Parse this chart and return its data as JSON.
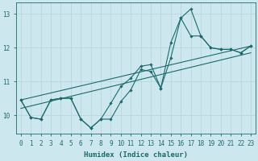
{
  "title": "",
  "xlabel": "Humidex (Indice chaleur)",
  "ylabel": "",
  "xlim": [
    -0.5,
    23.5
  ],
  "ylim": [
    9.45,
    13.35
  ],
  "yticks": [
    10,
    11,
    12,
    13
  ],
  "xticks": [
    0,
    1,
    2,
    3,
    4,
    5,
    6,
    7,
    8,
    9,
    10,
    11,
    12,
    13,
    14,
    15,
    16,
    17,
    18,
    19,
    20,
    21,
    22,
    23
  ],
  "background_color": "#cce8ee",
  "line_color": "#1a6b6b",
  "grid_color": "#b8d5db",
  "lines": [
    {
      "x": [
        0,
        1,
        2,
        3,
        4,
        5,
        6,
        7,
        8,
        9,
        10,
        11,
        12,
        13,
        14,
        15,
        16,
        17,
        18,
        19,
        20,
        21,
        22,
        23
      ],
      "y": [
        10.45,
        9.93,
        9.88,
        10.45,
        10.5,
        10.5,
        9.88,
        9.62,
        9.88,
        10.35,
        10.85,
        11.1,
        11.45,
        11.5,
        10.8,
        12.15,
        12.88,
        13.15,
        12.35,
        12.0,
        11.95,
        11.95,
        11.85,
        12.05
      ]
    },
    {
      "x": [
        0,
        1,
        2,
        3,
        4,
        5,
        6,
        7,
        8,
        9,
        10,
        11,
        12,
        13,
        14,
        15,
        16,
        17,
        18,
        19,
        20,
        21,
        22,
        23
      ],
      "y": [
        10.45,
        9.93,
        9.88,
        10.45,
        10.5,
        10.5,
        9.88,
        9.62,
        9.88,
        9.88,
        10.4,
        10.75,
        11.35,
        11.3,
        10.8,
        11.7,
        12.88,
        12.35,
        12.35,
        12.0,
        11.95,
        11.95,
        11.85,
        12.05
      ]
    },
    {
      "x": [
        0,
        23
      ],
      "y": [
        10.45,
        12.05
      ]
    },
    {
      "x": [
        0,
        23
      ],
      "y": [
        10.2,
        11.85
      ]
    }
  ],
  "marker": "D",
  "markersize": 1.8,
  "linewidth": 0.8
}
